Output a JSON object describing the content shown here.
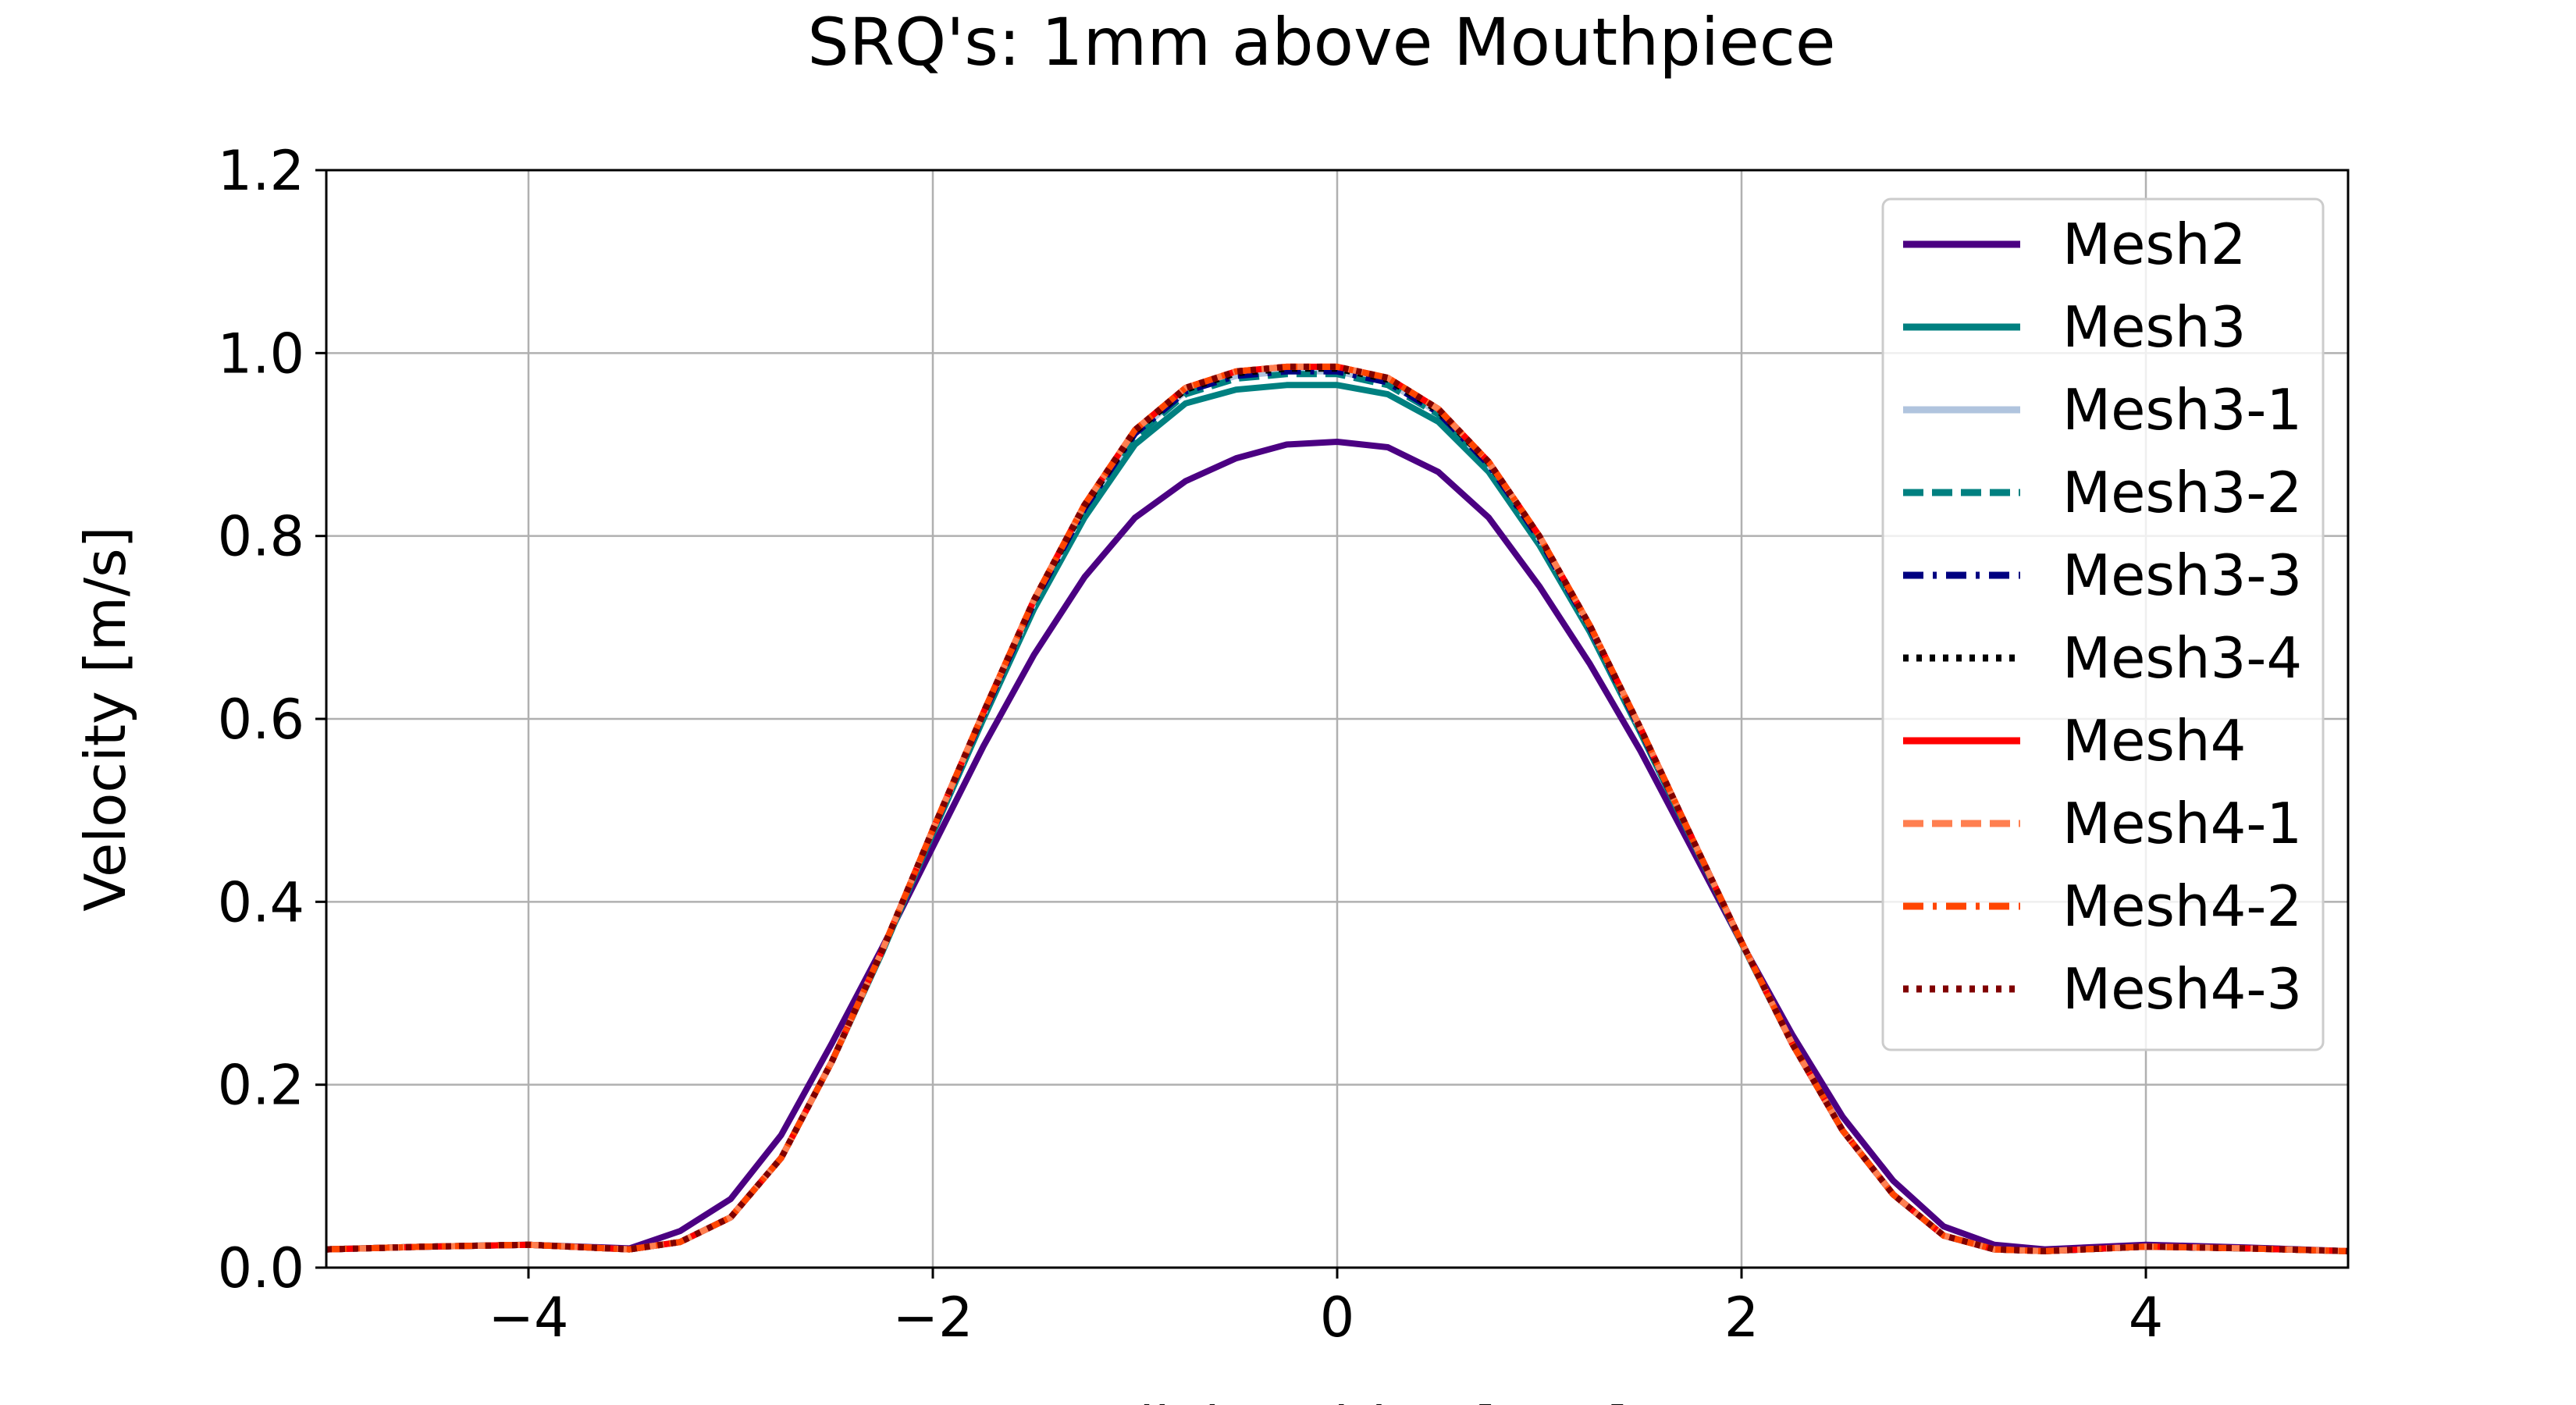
{
  "chart_data": {
    "type": "line",
    "title": "SRQ's: 1mm above Mouthpiece",
    "xlabel": "Radial Position [mm]",
    "ylabel": "Velocity [m/s]",
    "xlim": [
      -5,
      5
    ],
    "ylim": [
      0,
      1.2
    ],
    "xticks": [
      -4,
      -2,
      0,
      2,
      4
    ],
    "yticks": [
      0.0,
      0.2,
      0.4,
      0.6,
      0.8,
      1.0,
      1.2
    ],
    "xtick_labels": [
      "−4",
      "−2",
      "0",
      "2",
      "4"
    ],
    "ytick_labels": [
      "0.0",
      "0.2",
      "0.4",
      "0.6",
      "0.8",
      "1.0",
      "1.2"
    ],
    "grid": true,
    "legend_position": "top-right",
    "x": [
      -5.0,
      -4.5,
      -4.0,
      -3.5,
      -3.25,
      -3.0,
      -2.75,
      -2.5,
      -2.25,
      -2.0,
      -1.75,
      -1.5,
      -1.25,
      -1.0,
      -0.75,
      -0.5,
      -0.25,
      0.0,
      0.25,
      0.5,
      0.75,
      1.0,
      1.25,
      1.5,
      1.75,
      2.0,
      2.25,
      2.5,
      2.75,
      3.0,
      3.25,
      3.5,
      4.0,
      4.5,
      5.0
    ],
    "series": [
      {
        "name": "Mesh2",
        "color": "#4b0082",
        "style": "solid",
        "values": [
          0.02,
          0.023,
          0.025,
          0.021,
          0.04,
          0.075,
          0.145,
          0.245,
          0.35,
          0.46,
          0.57,
          0.67,
          0.755,
          0.82,
          0.86,
          0.885,
          0.9,
          0.903,
          0.897,
          0.87,
          0.82,
          0.745,
          0.66,
          0.565,
          0.46,
          0.355,
          0.255,
          0.165,
          0.095,
          0.045,
          0.025,
          0.02,
          0.025,
          0.022,
          0.018
        ]
      },
      {
        "name": "Mesh3",
        "color": "#008080",
        "style": "solid",
        "values": [
          0.02,
          0.023,
          0.025,
          0.02,
          0.028,
          0.055,
          0.12,
          0.225,
          0.345,
          0.475,
          0.6,
          0.72,
          0.82,
          0.9,
          0.945,
          0.96,
          0.965,
          0.965,
          0.955,
          0.925,
          0.87,
          0.79,
          0.695,
          0.585,
          0.47,
          0.355,
          0.245,
          0.15,
          0.08,
          0.035,
          0.02,
          0.018,
          0.023,
          0.021,
          0.018
        ]
      },
      {
        "name": "Mesh3-1",
        "color": "#b0c4de",
        "style": "solid",
        "values": [
          0.02,
          0.023,
          0.025,
          0.02,
          0.028,
          0.055,
          0.12,
          0.225,
          0.347,
          0.478,
          0.605,
          0.727,
          0.83,
          0.912,
          0.958,
          0.975,
          0.98,
          0.98,
          0.968,
          0.935,
          0.878,
          0.797,
          0.7,
          0.588,
          0.472,
          0.356,
          0.245,
          0.15,
          0.08,
          0.035,
          0.02,
          0.018,
          0.023,
          0.021,
          0.018
        ]
      },
      {
        "name": "Mesh3-2",
        "color": "#008080",
        "style": "dashed",
        "values": [
          0.02,
          0.023,
          0.025,
          0.02,
          0.028,
          0.055,
          0.12,
          0.225,
          0.346,
          0.477,
          0.603,
          0.725,
          0.827,
          0.908,
          0.955,
          0.972,
          0.977,
          0.977,
          0.965,
          0.933,
          0.876,
          0.795,
          0.698,
          0.587,
          0.471,
          0.355,
          0.245,
          0.15,
          0.08,
          0.035,
          0.02,
          0.018,
          0.023,
          0.021,
          0.018
        ]
      },
      {
        "name": "Mesh3-3",
        "color": "#000080",
        "style": "dashdot",
        "values": [
          0.02,
          0.023,
          0.025,
          0.02,
          0.028,
          0.055,
          0.12,
          0.225,
          0.347,
          0.478,
          0.605,
          0.727,
          0.83,
          0.912,
          0.958,
          0.975,
          0.98,
          0.98,
          0.968,
          0.935,
          0.878,
          0.797,
          0.7,
          0.588,
          0.472,
          0.356,
          0.245,
          0.15,
          0.08,
          0.035,
          0.02,
          0.018,
          0.023,
          0.021,
          0.018
        ]
      },
      {
        "name": "Mesh3-4",
        "color": "#000000",
        "style": "dotted",
        "values": [
          0.02,
          0.023,
          0.025,
          0.02,
          0.028,
          0.055,
          0.12,
          0.225,
          0.347,
          0.479,
          0.606,
          0.729,
          0.832,
          0.914,
          0.96,
          0.978,
          0.983,
          0.983,
          0.971,
          0.937,
          0.88,
          0.799,
          0.701,
          0.589,
          0.472,
          0.356,
          0.245,
          0.15,
          0.08,
          0.035,
          0.02,
          0.018,
          0.023,
          0.021,
          0.018
        ]
      },
      {
        "name": "Mesh4",
        "color": "#ff0000",
        "style": "solid",
        "values": [
          0.02,
          0.023,
          0.025,
          0.02,
          0.028,
          0.055,
          0.12,
          0.225,
          0.347,
          0.479,
          0.607,
          0.73,
          0.834,
          0.916,
          0.962,
          0.98,
          0.985,
          0.985,
          0.973,
          0.939,
          0.881,
          0.8,
          0.702,
          0.59,
          0.472,
          0.356,
          0.245,
          0.15,
          0.08,
          0.035,
          0.02,
          0.018,
          0.023,
          0.021,
          0.018
        ]
      },
      {
        "name": "Mesh4-1",
        "color": "#ff7f50",
        "style": "dashed",
        "values": [
          0.02,
          0.023,
          0.025,
          0.02,
          0.028,
          0.055,
          0.12,
          0.225,
          0.347,
          0.479,
          0.607,
          0.73,
          0.834,
          0.916,
          0.962,
          0.98,
          0.985,
          0.985,
          0.973,
          0.939,
          0.881,
          0.8,
          0.702,
          0.59,
          0.472,
          0.356,
          0.245,
          0.15,
          0.08,
          0.035,
          0.02,
          0.018,
          0.023,
          0.021,
          0.018
        ]
      },
      {
        "name": "Mesh4-2",
        "color": "#ff4500",
        "style": "dashdot",
        "values": [
          0.02,
          0.023,
          0.025,
          0.02,
          0.028,
          0.055,
          0.12,
          0.225,
          0.347,
          0.479,
          0.607,
          0.73,
          0.834,
          0.916,
          0.962,
          0.98,
          0.985,
          0.985,
          0.973,
          0.939,
          0.881,
          0.8,
          0.702,
          0.59,
          0.472,
          0.356,
          0.245,
          0.15,
          0.08,
          0.035,
          0.02,
          0.018,
          0.023,
          0.021,
          0.018
        ]
      },
      {
        "name": "Mesh4-3",
        "color": "#800000",
        "style": "dotted",
        "values": [
          0.02,
          0.023,
          0.025,
          0.02,
          0.028,
          0.055,
          0.12,
          0.225,
          0.347,
          0.479,
          0.607,
          0.73,
          0.834,
          0.916,
          0.962,
          0.98,
          0.985,
          0.985,
          0.973,
          0.939,
          0.881,
          0.8,
          0.702,
          0.59,
          0.472,
          0.356,
          0.245,
          0.15,
          0.08,
          0.035,
          0.02,
          0.018,
          0.023,
          0.021,
          0.018
        ]
      }
    ]
  }
}
